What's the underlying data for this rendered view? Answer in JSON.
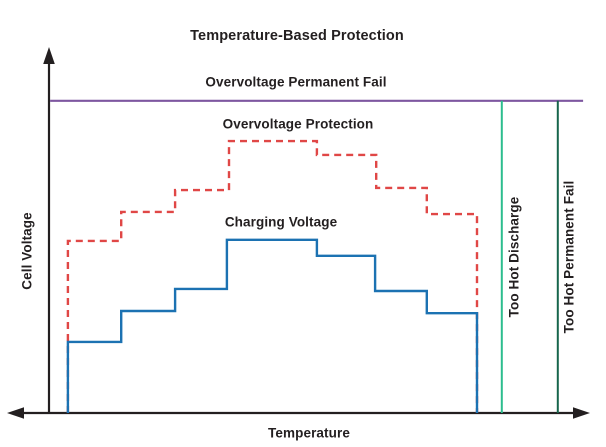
{
  "chart_data": {
    "type": "line",
    "variant": "step",
    "title": "Temperature-Based Protection",
    "xlabel": "Temperature",
    "ylabel": "Cell Voltage",
    "axes": {
      "x_range": [
        0,
        100
      ],
      "y_range": [
        0,
        100
      ],
      "tick_labels": "none",
      "grid": false,
      "x_axis_arrows": "both-ends",
      "y_axis_arrow": "top"
    },
    "legend_position": "inline-labels",
    "series": [
      {
        "name": "Charging Voltage",
        "color": "#1c72b2",
        "style": "solid",
        "points": [
          [
            3.5,
            0
          ],
          [
            3.5,
            19.6
          ],
          [
            13.4,
            19.6
          ],
          [
            13.4,
            28.1
          ],
          [
            23.4,
            28.1
          ],
          [
            23.4,
            34.2
          ],
          [
            33.0,
            34.2
          ],
          [
            33.0,
            47.7
          ],
          [
            49.7,
            47.7
          ],
          [
            49.7,
            43.3
          ],
          [
            60.5,
            43.3
          ],
          [
            60.5,
            33.6
          ],
          [
            70.1,
            33.6
          ],
          [
            70.1,
            27.5
          ],
          [
            79.4,
            27.5
          ],
          [
            79.4,
            0
          ]
        ]
      },
      {
        "name": "Overvoltage Protection",
        "color": "#e04746",
        "style": "dashed",
        "points": [
          [
            3.5,
            0
          ],
          [
            3.5,
            47.4
          ],
          [
            13.4,
            47.4
          ],
          [
            13.4,
            55.4
          ],
          [
            23.4,
            55.4
          ],
          [
            23.4,
            61.4
          ],
          [
            33.4,
            61.4
          ],
          [
            33.4,
            74.9
          ],
          [
            49.7,
            74.9
          ],
          [
            49.7,
            71.1
          ],
          [
            60.7,
            71.1
          ],
          [
            60.7,
            62.0
          ],
          [
            70.1,
            62.0
          ],
          [
            70.1,
            54.8
          ],
          [
            79.4,
            54.8
          ],
          [
            79.4,
            0
          ]
        ]
      },
      {
        "name": "Overvoltage Permanent Fail",
        "color": "#7e57a0",
        "style": "solid",
        "points": [
          [
            0.2,
            86
          ],
          [
            99.1,
            86
          ]
        ]
      },
      {
        "name": "Too Hot Discharge",
        "color": "#2cbd8e",
        "style": "solid",
        "points": [
          [
            84.0,
            0
          ],
          [
            84.0,
            86
          ]
        ]
      },
      {
        "name": "Too Hot Permanent Fail",
        "color": "#17654c",
        "style": "solid",
        "points": [
          [
            94.4,
            0
          ],
          [
            94.4,
            86
          ]
        ]
      }
    ]
  }
}
